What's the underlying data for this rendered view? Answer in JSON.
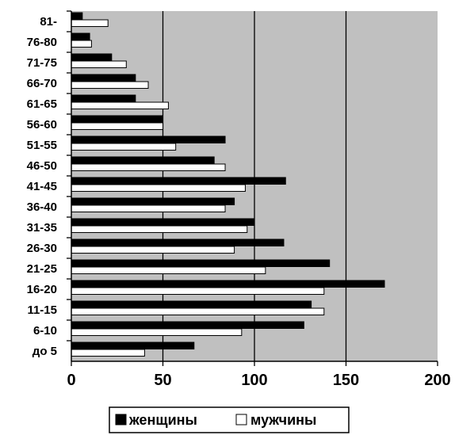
{
  "chart_data": {
    "type": "bar",
    "orientation": "horizontal",
    "categories": [
      "81-",
      "76-80",
      "71-75",
      "66-70",
      "61-65",
      "56-60",
      "51-55",
      "46-50",
      "41-45",
      "36-40",
      "31-35",
      "26-30",
      "21-25",
      "16-20",
      "11-15",
      "6-10",
      "до 5"
    ],
    "series": [
      {
        "name": "женщины",
        "color": "#000000",
        "values": [
          6,
          10,
          22,
          35,
          35,
          50,
          84,
          78,
          117,
          89,
          100,
          116,
          141,
          171,
          131,
          127,
          67
        ]
      },
      {
        "name": "мужчины",
        "color": "#ffffff",
        "values": [
          20,
          11,
          30,
          42,
          53,
          50,
          57,
          84,
          95,
          84,
          96,
          89,
          106,
          138,
          138,
          93,
          40
        ]
      }
    ],
    "xlim": [
      0,
      200
    ],
    "xticks": [
      "0",
      "50",
      "100",
      "150",
      "200"
    ],
    "grid": true,
    "plot_background": "#c0c0c0",
    "legend_position": "bottom"
  }
}
